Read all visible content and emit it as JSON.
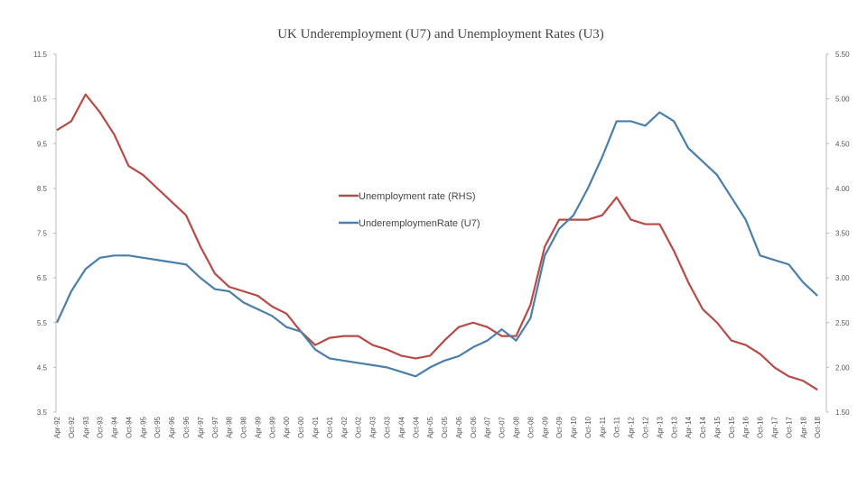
{
  "chart_data": {
    "type": "line",
    "title": "UK Underemployment (U7) and Unemployment Rates (U3)",
    "categories": [
      "Apr-92",
      "Oct-92",
      "Apr-93",
      "Oct-93",
      "Apr-94",
      "Oct-94",
      "Apr-95",
      "Oct-95",
      "Apr-96",
      "Oct-96",
      "Apr-97",
      "Oct-97",
      "Apr-98",
      "Oct-98",
      "Apr-99",
      "Oct-99",
      "Apr-00",
      "Oct-00",
      "Apr-01",
      "Oct-01",
      "Apr-02",
      "Oct-02",
      "Apr-03",
      "Oct-03",
      "Apr-04",
      "Oct-04",
      "Apr-05",
      "Oct-05",
      "Apr-06",
      "Oct-06",
      "Apr-07",
      "Oct-07",
      "Apr-08",
      "Oct-08",
      "Apr-09",
      "Oct-09",
      "Apr-10",
      "Oct-10",
      "Apr-11",
      "Oct-11",
      "Apr-12",
      "Oct-12",
      "Apr-13",
      "Oct-13",
      "Apr-14",
      "Oct-14",
      "Apr-15",
      "Oct-15",
      "Apr-16",
      "Oct-16",
      "Apr-17",
      "Oct-17",
      "Apr-18",
      "Oct-18"
    ],
    "series": [
      {
        "name": "Unemployment rate (RHS)",
        "color": "#b84a45",
        "axis": "y2",
        "values": [
          4.65,
          4.75,
          5.05,
          4.85,
          4.6,
          4.25,
          4.15,
          4.0,
          3.85,
          3.7,
          3.35,
          3.05,
          2.9,
          2.85,
          2.8,
          2.68,
          2.6,
          2.4,
          2.25,
          2.33,
          2.35,
          2.35,
          2.25,
          2.2,
          2.13,
          2.1,
          2.13,
          2.3,
          2.45,
          2.5,
          2.45,
          2.35,
          2.35,
          2.7,
          3.35,
          3.65,
          3.65,
          3.65,
          3.7,
          3.9,
          3.65,
          3.6,
          3.6,
          3.3,
          2.95,
          2.65,
          2.5,
          2.3,
          2.25,
          2.15,
          2.0,
          1.9,
          1.85,
          1.75
        ]
      },
      {
        "name": "UnderemploymenRate (U7)",
        "color": "#4a7eab",
        "values": [
          5.5,
          6.2,
          6.7,
          6.95,
          7.0,
          7.0,
          6.95,
          6.9,
          6.85,
          6.8,
          6.5,
          6.25,
          6.2,
          5.95,
          5.8,
          5.65,
          5.4,
          5.3,
          4.9,
          4.7,
          4.65,
          4.6,
          4.55,
          4.5,
          4.4,
          4.3,
          4.5,
          4.65,
          4.75,
          4.95,
          5.1,
          5.35,
          5.1,
          5.6,
          7.0,
          7.6,
          7.9,
          8.5,
          9.2,
          10.0,
          10.0,
          9.9,
          10.2,
          10.0,
          9.4,
          9.1,
          8.8,
          8.3,
          7.8,
          7.0,
          6.9,
          6.8,
          6.4,
          6.1
        ]
      }
    ],
    "ylim": [
      3.5,
      11.5
    ],
    "yticks": [
      3.5,
      4.5,
      5.5,
      6.5,
      7.5,
      8.5,
      9.5,
      10.5,
      11.5
    ],
    "y2lim": [
      1.5,
      5.5
    ],
    "y2ticks": [
      {
        "value": 1.5,
        "label": "1.50"
      },
      {
        "value": 2,
        "label": "2.00"
      },
      {
        "value": 2.5,
        "label": "2.50"
      },
      {
        "value": 3,
        "label": "3.00"
      },
      {
        "value": 3.5,
        "label": "3.50"
      },
      {
        "value": 4,
        "label": "4.00"
      },
      {
        "value": 4.5,
        "label": "4.50"
      },
      {
        "value": 5,
        "label": "5.00"
      },
      {
        "value": 5.5,
        "label": "5.50"
      }
    ],
    "grid": false,
    "legend": "center"
  }
}
